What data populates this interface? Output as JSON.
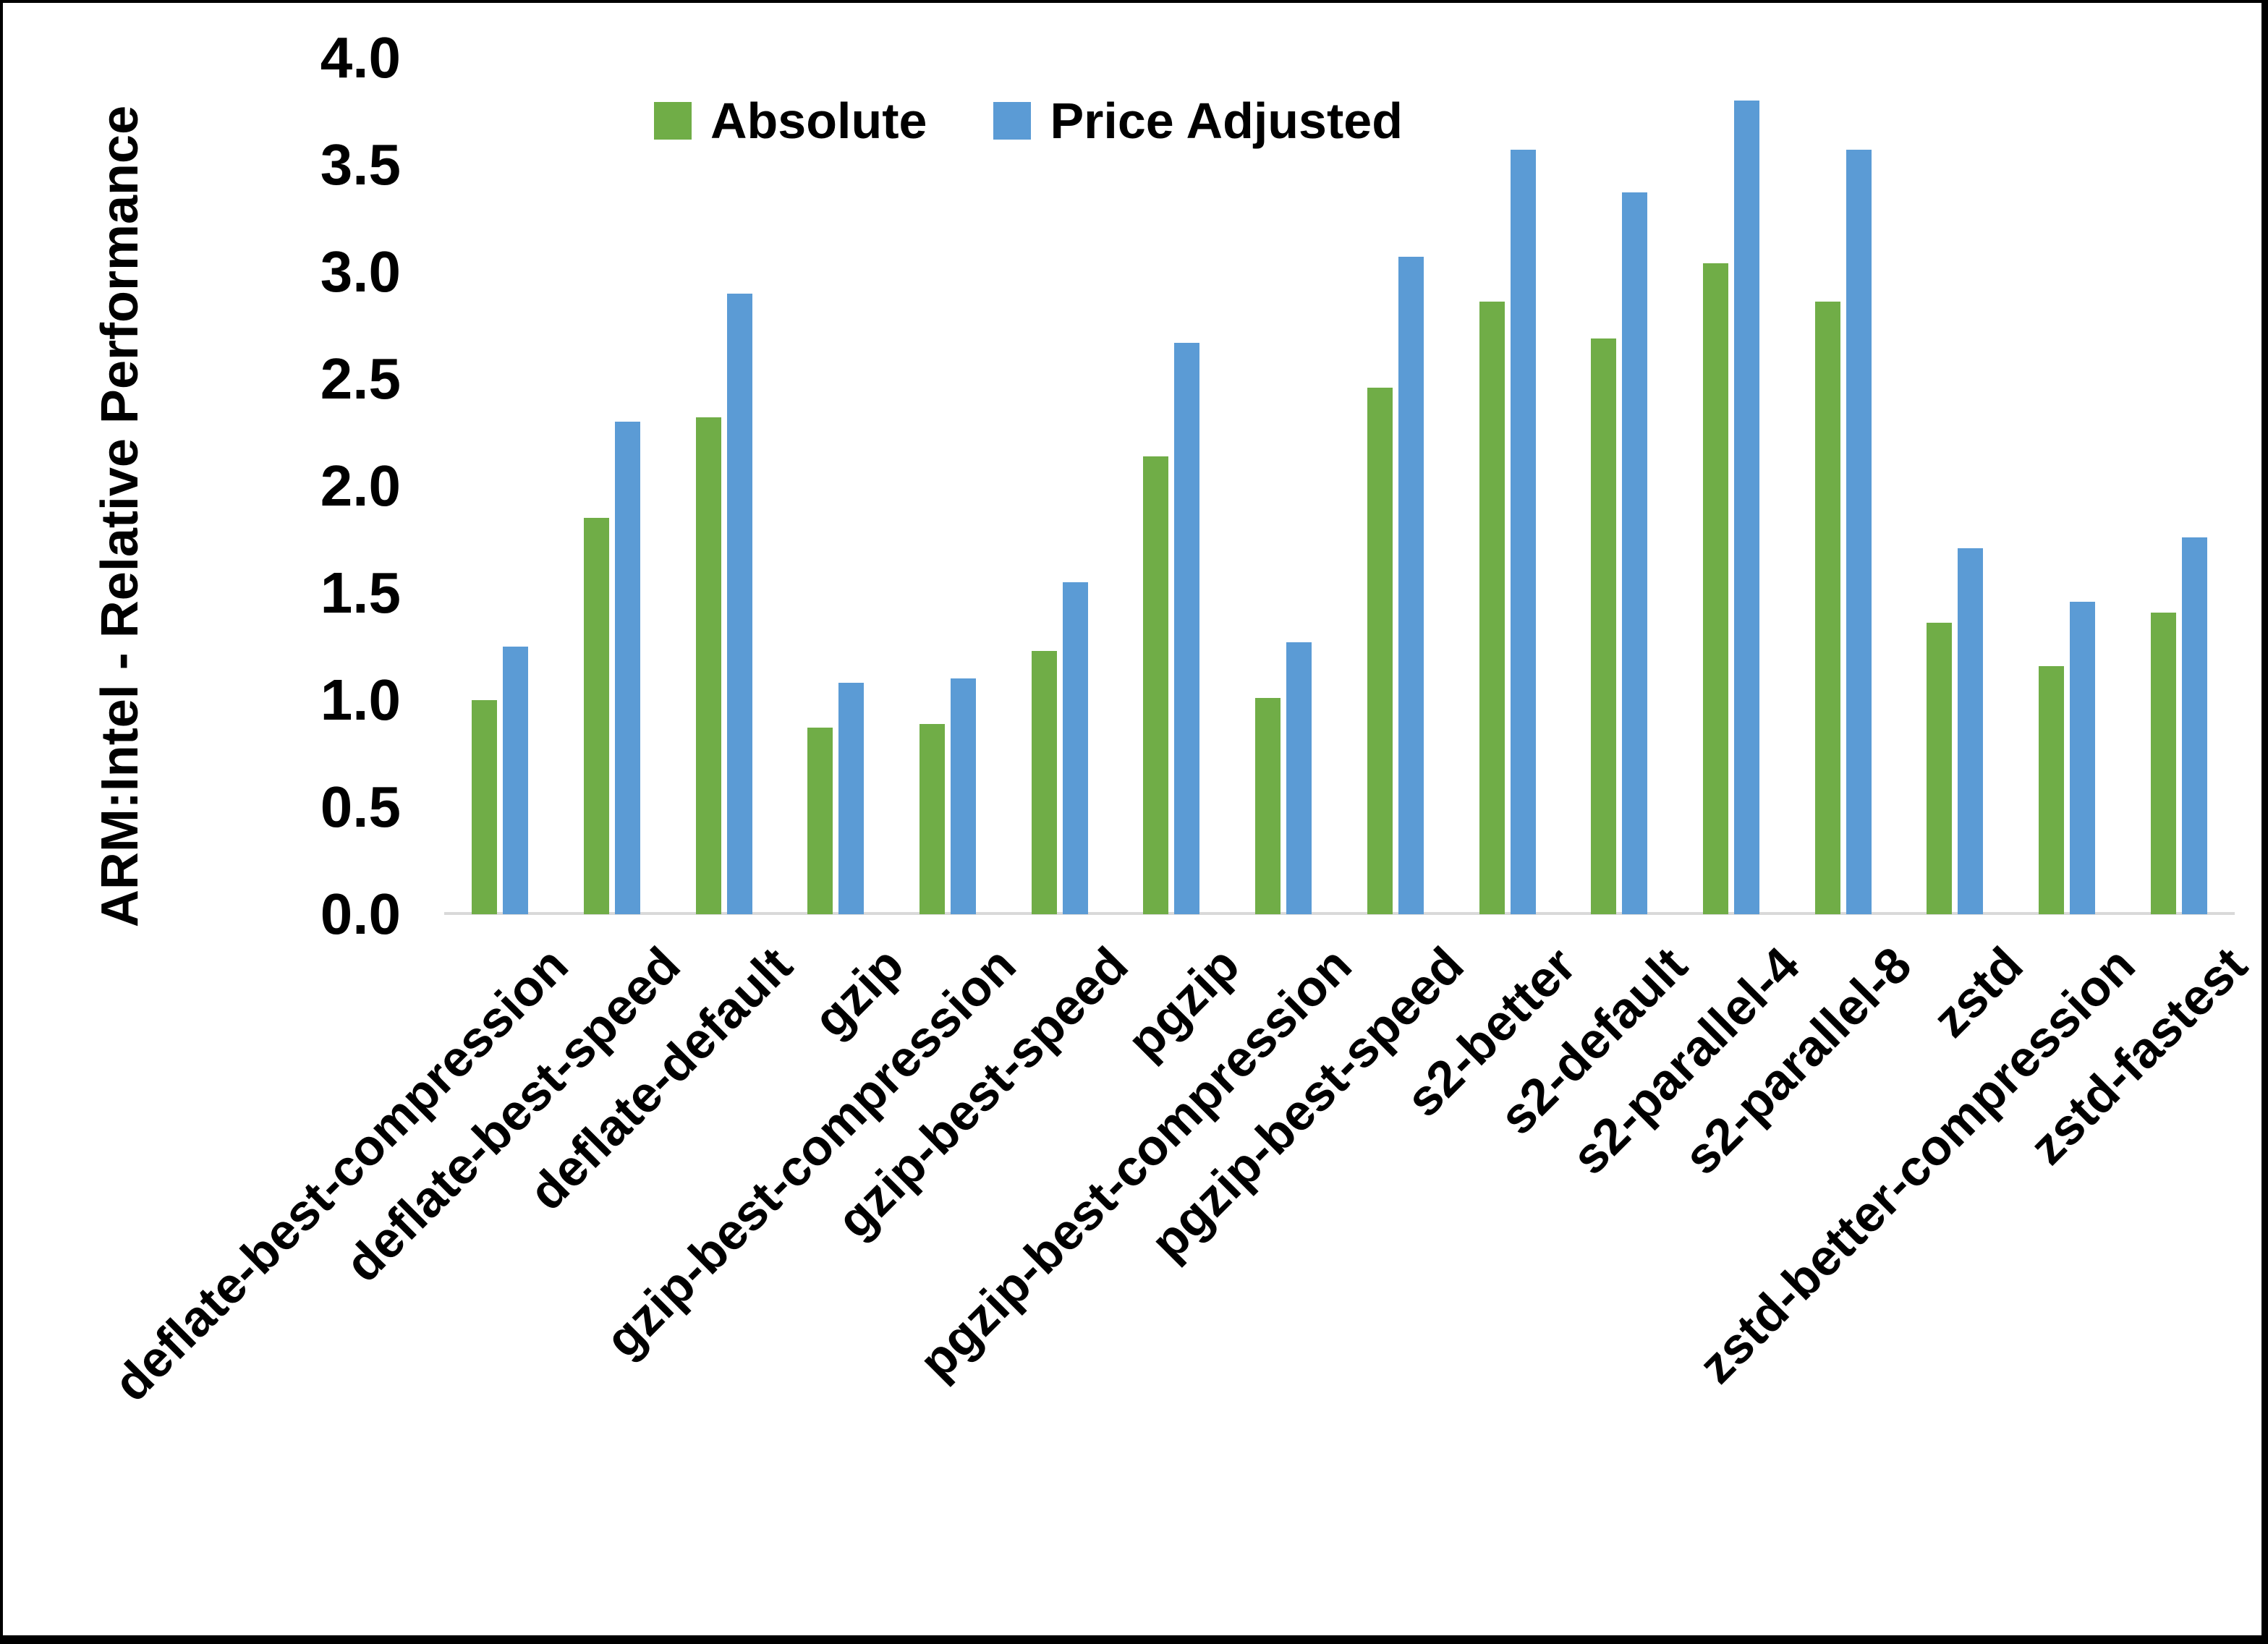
{
  "chart_data": {
    "type": "bar",
    "title": "",
    "y_axis_title": "ARM:Intel - Relative Performance",
    "xlabel": "",
    "ylabel": "ARM:Intel - Relative Performance",
    "ylim": [
      0.0,
      4.0
    ],
    "ytick_step": 0.5,
    "yticks": [
      "0.0",
      "0.5",
      "1.0",
      "1.5",
      "2.0",
      "2.5",
      "3.0",
      "3.5",
      "4.0"
    ],
    "grid": false,
    "legend_position": "top-center",
    "axis_line_color": "#D9D9D9",
    "categories": [
      "deflate-best-compression",
      "deflate-best-speed",
      "deflate-default",
      "gzip",
      "gzip-best-compression",
      "gzip-best-speed",
      "pgzip",
      "pgzip-best-compression",
      "pgzip-best-speed",
      "s2-better",
      "s2-default",
      "s2-parallel-4",
      "s2-parallel-8",
      "zstd",
      "zstd-better-compression",
      "zstd-fastest"
    ],
    "series": [
      {
        "name": "Absolute",
        "color": "#70AD47",
        "values": [
          1.0,
          1.85,
          2.32,
          0.87,
          0.89,
          1.23,
          2.14,
          1.01,
          2.46,
          2.86,
          2.69,
          3.04,
          2.86,
          1.36,
          1.16,
          1.41
        ]
      },
      {
        "name": "Price Adjusted",
        "color": "#5B9BD5",
        "values": [
          1.25,
          2.3,
          2.9,
          1.08,
          1.1,
          1.55,
          2.67,
          1.27,
          3.07,
          3.57,
          3.37,
          3.8,
          3.57,
          1.71,
          1.46,
          1.76
        ]
      }
    ]
  }
}
